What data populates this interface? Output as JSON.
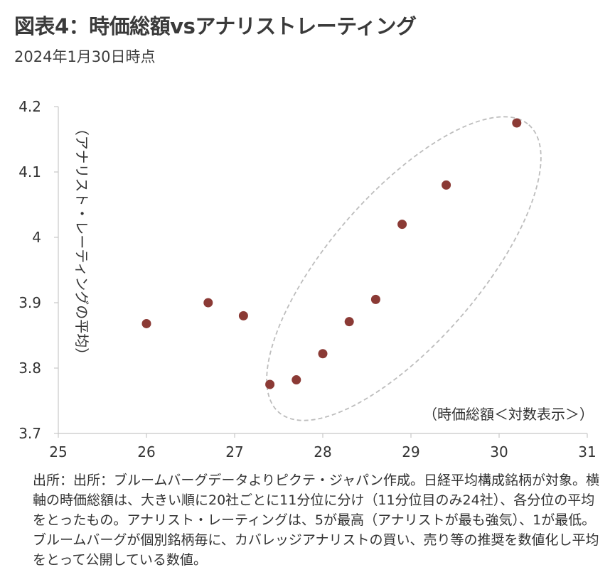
{
  "header": {
    "title": "図表4：時価総額vsアナリストレーティング",
    "subtitle": "2024年1月30日時点"
  },
  "chart_data": {
    "type": "scatter",
    "ylabel": "（アナリスト・レーティングの平均）",
    "xlabel": "（時価総額＜対数表示＞）",
    "xlim": [
      25,
      31
    ],
    "ylim": [
      3.7,
      4.2
    ],
    "x_ticks": [
      "25",
      "26",
      "27",
      "28",
      "29",
      "30",
      "31"
    ],
    "y_ticks": [
      "3.7",
      "3.8",
      "3.9",
      "4",
      "4.1",
      "4.2"
    ],
    "points": [
      {
        "x": 26.0,
        "y": 3.868
      },
      {
        "x": 26.7,
        "y": 3.9
      },
      {
        "x": 27.1,
        "y": 3.88
      },
      {
        "x": 27.4,
        "y": 3.775
      },
      {
        "x": 27.7,
        "y": 3.782
      },
      {
        "x": 28.0,
        "y": 3.822
      },
      {
        "x": 28.3,
        "y": 3.871
      },
      {
        "x": 28.6,
        "y": 3.905
      },
      {
        "x": 28.9,
        "y": 4.02
      },
      {
        "x": 29.4,
        "y": 4.08
      },
      {
        "x": 30.2,
        "y": 4.175
      }
    ],
    "point_color": "#8b3a35",
    "axis_color": "#c8c8c8",
    "ellipse_color": "#bdbdbd",
    "grid": false
  },
  "footnote": "出所：出所：ブルームバーグデータよりピクテ・ジャパン作成。日経平均構成銘柄が対象。横軸の時価総額は、大きい順に20社ごとに11分位に分け（11分位目のみ24社）、各分位の平均をとったもの。アナリスト・レーティングは、5が最高（アナリストが最も強気）、1が最低。ブルームバーグが個別銘柄毎に、カバレッジアナリストの買い、売り等の推奨を数値化し平均をとって公開している数値。"
}
